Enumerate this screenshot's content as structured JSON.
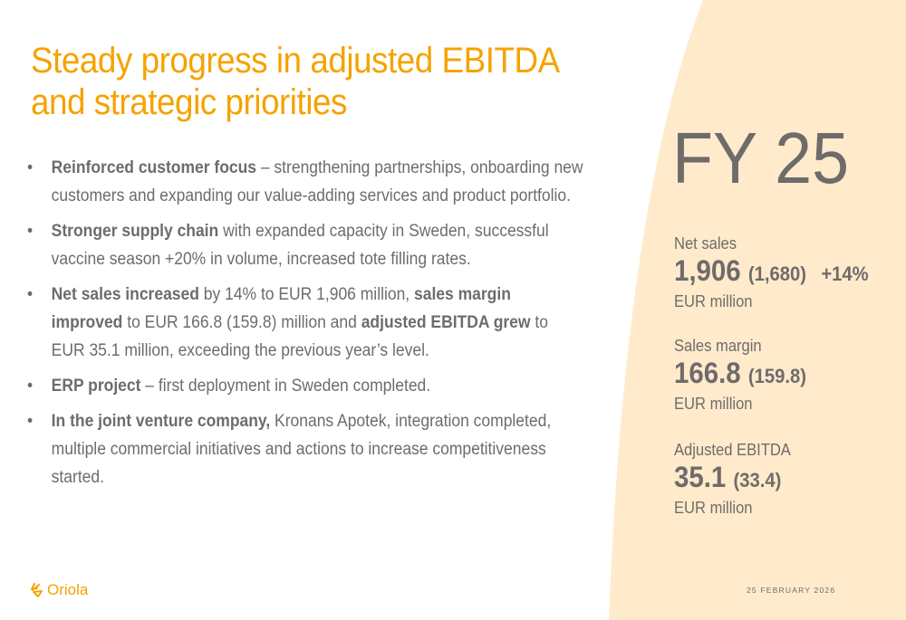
{
  "title": "Steady progress in adjusted EBITDA and strategic priorities",
  "bullets": [
    {
      "bold1": "Reinforced customer focus",
      "text1": " – strengthening partnerships, onboarding new customers and expanding our value-adding services and product portfolio."
    },
    {
      "bold1": "Stronger supply chain",
      "text1": " with expanded capacity in Sweden, successful vaccine season +20% in volume, increased tote filling rates."
    },
    {
      "bold1": "Net sales increased",
      "text1": " by 14% to EUR 1,906 million, ",
      "bold2": "sales margin improved",
      "text2": " to EUR 166.8 (159.8) million and ",
      "bold3": "adjusted EBITDA grew",
      "text3": " to EUR 35.1 million, exceeding the previous year’s level."
    },
    {
      "bold1": "ERP project",
      "text1": " – first deployment in Sweden completed."
    },
    {
      "bold1": "In the joint venture company,",
      "text1": " Kronans Apotek, integration completed, multiple commercial initiatives and actions to increase competitiveness started."
    }
  ],
  "bullet_char": "•",
  "period": "FY 25",
  "kpis": [
    {
      "label": "Net sales",
      "value": "1,906",
      "previous": "(1,680)",
      "change": "+14%",
      "unit": "EUR million"
    },
    {
      "label": "Sales margin",
      "value": "166.8",
      "previous": "(159.8)",
      "unit": "EUR million"
    },
    {
      "label": "Adjusted EBITDA",
      "value": "35.1",
      "previous": "(33.4)",
      "unit": "EUR million"
    }
  ],
  "footer": {
    "logo": "Oriola",
    "date": "25 FEBRUARY 2026"
  },
  "colors": {
    "accent": "#f4a300",
    "panel": "#ffebcb",
    "text": "#6f6b6b"
  }
}
